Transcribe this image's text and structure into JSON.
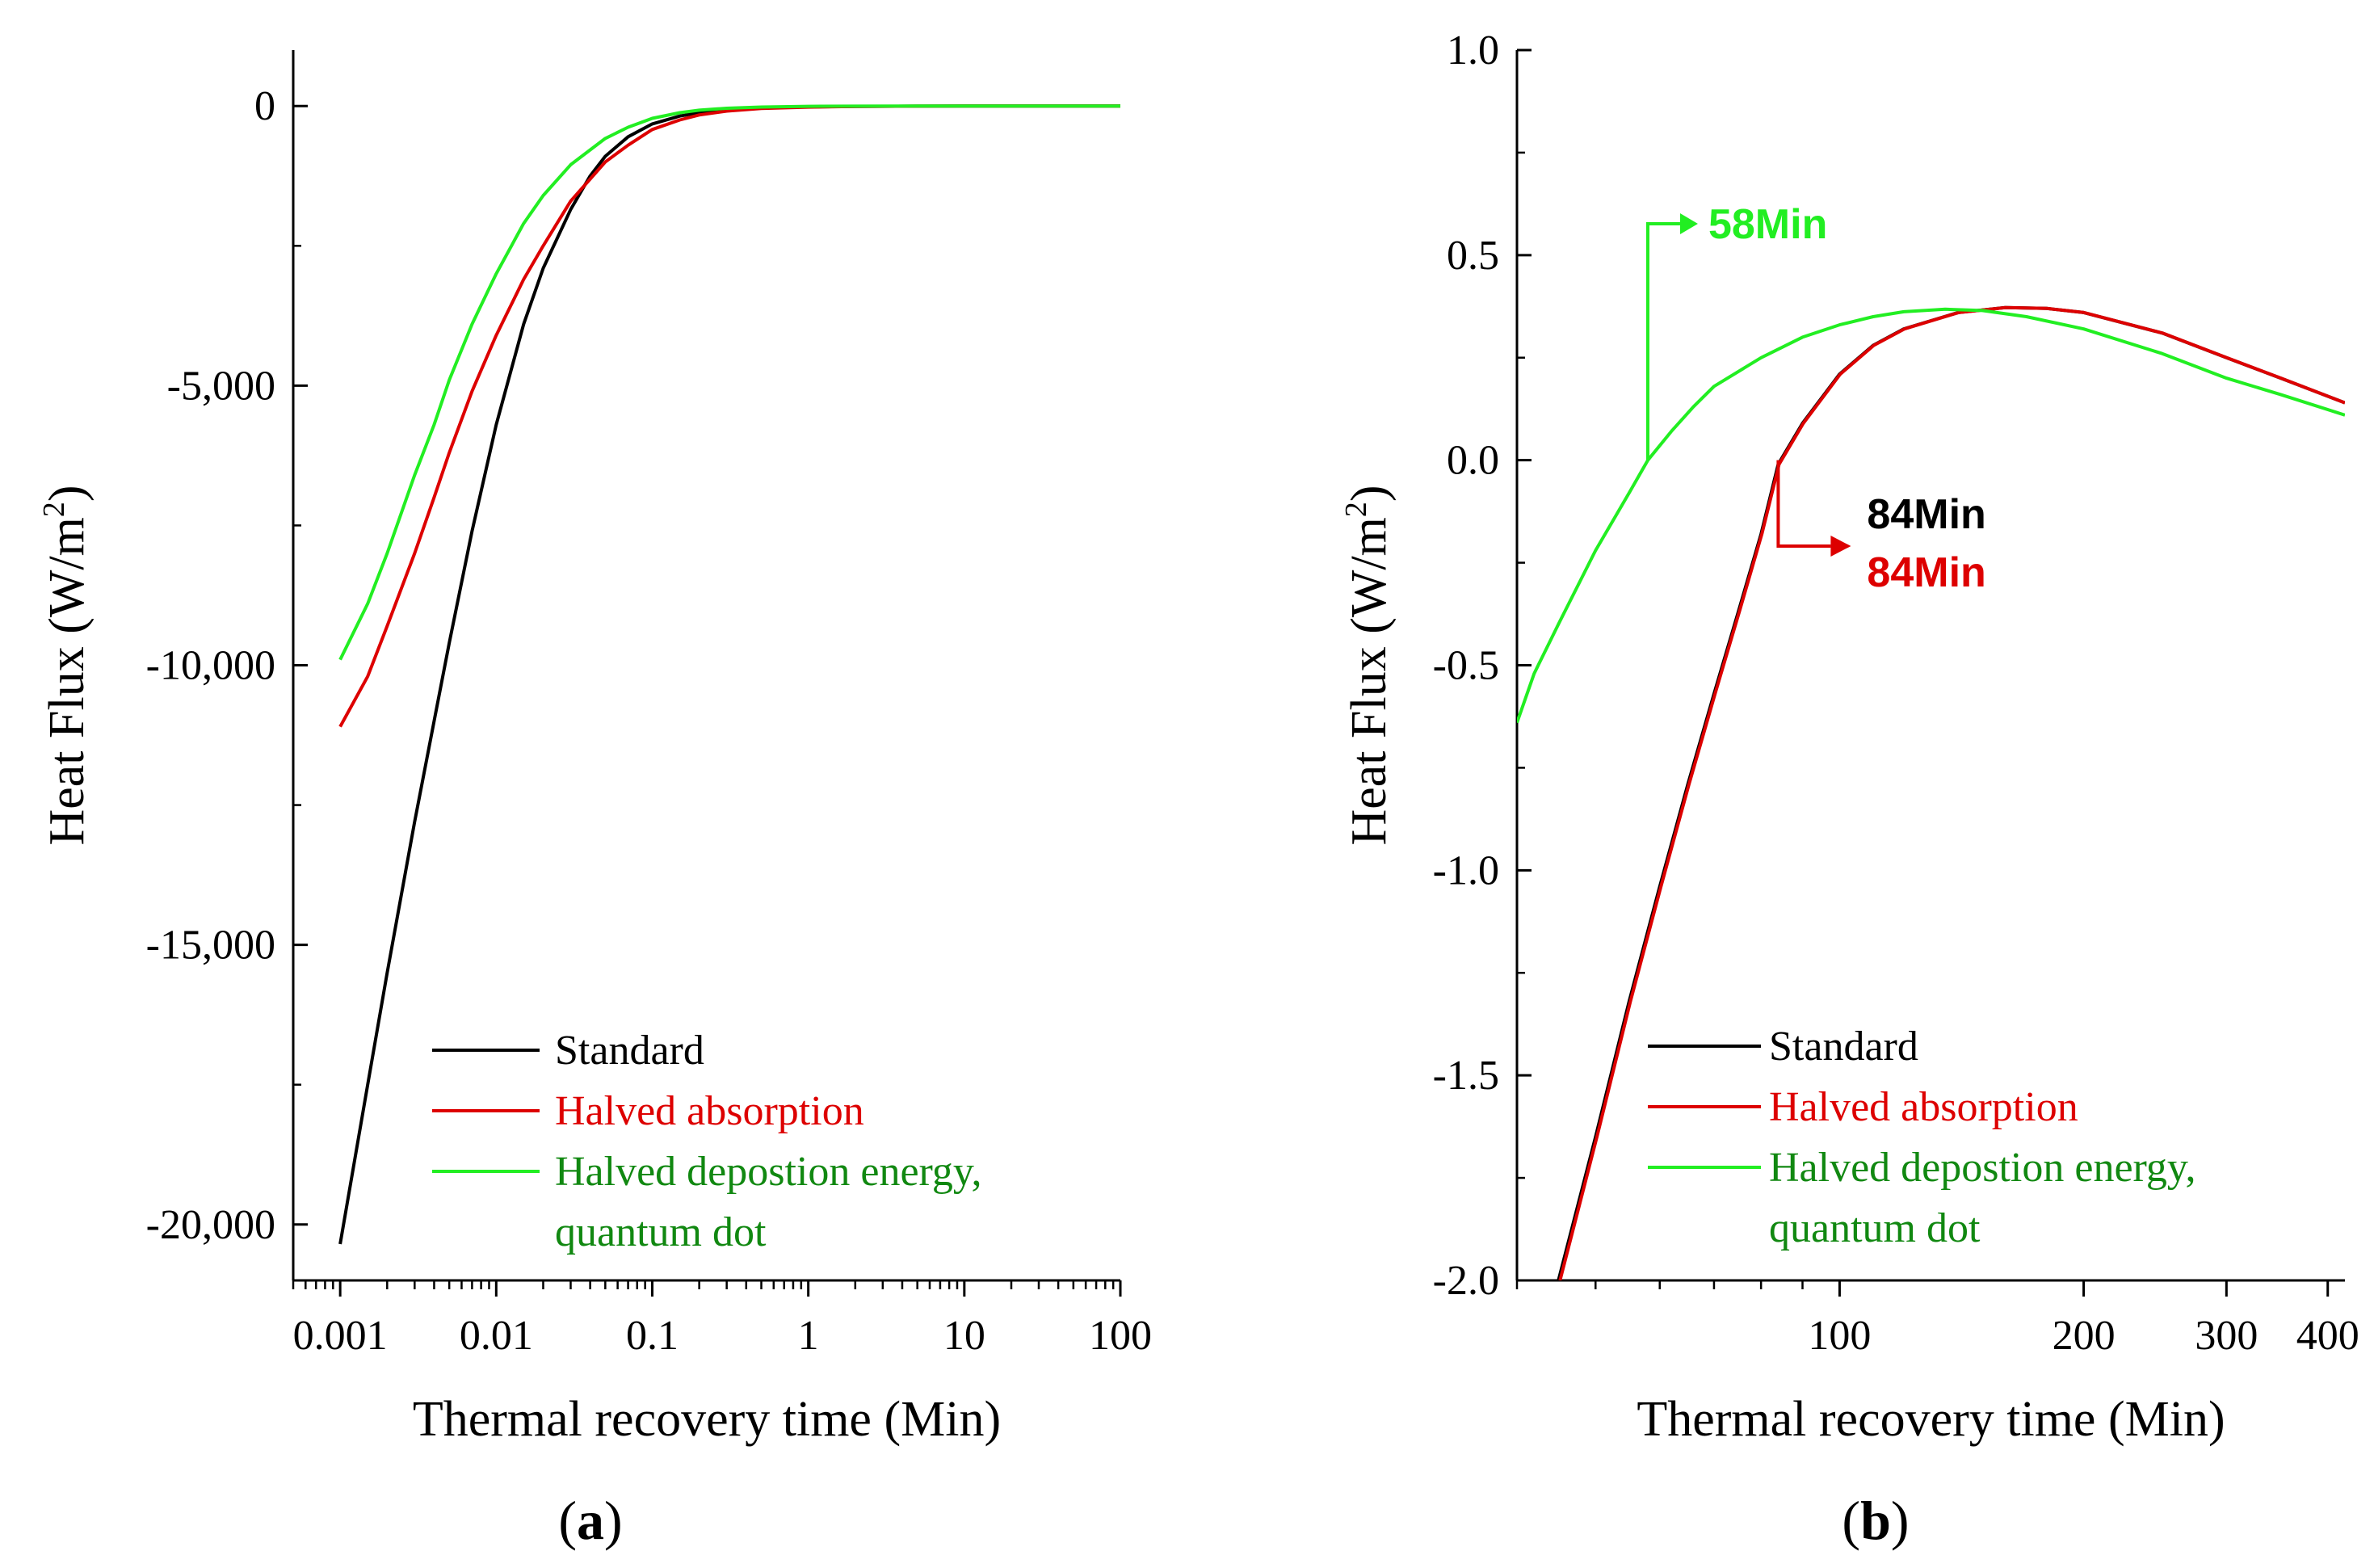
{
  "colors": {
    "standard": "#000000",
    "halved_absorption": "#dd0000",
    "halved_deposition": "#22ee22",
    "legend_text_green": "#118811",
    "annot_green": "#22ee22",
    "annot_black": "#000000",
    "annot_red": "#dd0000"
  },
  "chart_data": [
    {
      "panel": "a",
      "panel_label_open": "(",
      "panel_label_letter": "a",
      "panel_label_close": ")",
      "type": "line",
      "xscale": "log",
      "xlabel": "Thermal recovery time (Min)",
      "ylabel_main": "Heat Flux (W/m",
      "ylabel_sup": "2",
      "ylabel_close": ")",
      "xlim": [
        0.0005,
        100
      ],
      "ylim": [
        -21000,
        1000
      ],
      "xticks": [
        {
          "value": 0.001,
          "label": "0.001"
        },
        {
          "value": 0.01,
          "label": "0.01"
        },
        {
          "value": 0.1,
          "label": "0.1"
        },
        {
          "value": 1,
          "label": "1"
        },
        {
          "value": 10,
          "label": "10"
        },
        {
          "value": 100,
          "label": "100"
        }
      ],
      "yticks": [
        {
          "value": 0,
          "label": "0"
        },
        {
          "value": -5000,
          "label": "-5,000"
        },
        {
          "value": -10000,
          "label": "-10,000"
        },
        {
          "value": -15000,
          "label": "-15,000"
        },
        {
          "value": -20000,
          "label": "-20,000"
        }
      ],
      "legend_position": "bottom-right",
      "series": [
        {
          "name": "Standard",
          "key": "standard",
          "x": [
            0.001,
            0.0015,
            0.002,
            0.003,
            0.004,
            0.005,
            0.007,
            0.01,
            0.015,
            0.02,
            0.03,
            0.04,
            0.05,
            0.07,
            0.1,
            0.15,
            0.2,
            0.3,
            0.5,
            0.7,
            1,
            2,
            5,
            10,
            100
          ],
          "y": [
            -20350,
            -17500,
            -15500,
            -12800,
            -11000,
            -9600,
            -7600,
            -5700,
            -3900,
            -2900,
            -1850,
            -1250,
            -900,
            -550,
            -320,
            -180,
            -120,
            -70,
            -35,
            -22,
            -15,
            -8,
            -3,
            -1,
            0
          ]
        },
        {
          "name": "Halved absorption",
          "key": "halved_absorption",
          "x": [
            0.001,
            0.0015,
            0.002,
            0.003,
            0.004,
            0.005,
            0.007,
            0.01,
            0.015,
            0.02,
            0.03,
            0.05,
            0.07,
            0.1,
            0.15,
            0.2,
            0.3,
            0.5,
            1,
            2,
            5,
            10,
            100
          ],
          "y": [
            -11100,
            -10200,
            -9300,
            -8000,
            -7000,
            -6200,
            -5100,
            -4100,
            -3100,
            -2500,
            -1700,
            -1000,
            -700,
            -420,
            -250,
            -160,
            -90,
            -45,
            -20,
            -8,
            -3,
            -1,
            0
          ]
        },
        {
          "name": "Halved depostion energy,",
          "name_line2": "quantum dot",
          "key": "halved_deposition",
          "x": [
            0.001,
            0.0015,
            0.002,
            0.003,
            0.004,
            0.005,
            0.007,
            0.01,
            0.015,
            0.02,
            0.03,
            0.05,
            0.07,
            0.1,
            0.15,
            0.2,
            0.3,
            0.5,
            1,
            2,
            5,
            10,
            100
          ],
          "y": [
            -9900,
            -8900,
            -8000,
            -6600,
            -5700,
            -4900,
            -3900,
            -3000,
            -2100,
            -1600,
            -1050,
            -580,
            -380,
            -220,
            -120,
            -75,
            -40,
            -18,
            -6,
            -2,
            -1,
            0,
            0
          ]
        }
      ]
    },
    {
      "panel": "b",
      "panel_label_open": "(",
      "panel_label_letter": "b",
      "panel_label_close": ")",
      "type": "line",
      "xscale": "log",
      "xlabel": "Thermal recovery time (Min)",
      "ylabel_main": "Heat Flux (W/m",
      "ylabel_sup": "2",
      "ylabel_close": ")",
      "xlim": [
        40,
        420
      ],
      "ylim": [
        -2.0,
        1.0
      ],
      "xticks": [
        {
          "value": 100,
          "label": "100"
        },
        {
          "value": 200,
          "label": "200"
        },
        {
          "value": 300,
          "label": "300"
        },
        {
          "value": 400,
          "label": "400"
        }
      ],
      "yticks": [
        {
          "value": 1.0,
          "label": "1.0"
        },
        {
          "value": 0.5,
          "label": "0.5"
        },
        {
          "value": 0.0,
          "label": "0.0"
        },
        {
          "value": -0.5,
          "label": "-0.5"
        },
        {
          "value": -1.0,
          "label": "-1.0"
        },
        {
          "value": -1.5,
          "label": "-1.5"
        },
        {
          "value": -2.0,
          "label": "-2.0"
        }
      ],
      "legend_position": "bottom-right",
      "annotations": [
        {
          "text": "58Min",
          "key": "annot_green",
          "x_value": 58,
          "y_value": 0.0
        },
        {
          "text": "84Min",
          "key": "annot_black",
          "x_value": 84,
          "y_value": 0.0
        },
        {
          "text": "84Min",
          "key": "annot_red",
          "x_value": 84,
          "y_value": 0.0
        }
      ],
      "series": [
        {
          "name": "Standard",
          "key": "standard",
          "x": [
            45,
            50,
            55,
            60,
            65,
            70,
            75,
            80,
            84,
            90,
            100,
            110,
            120,
            140,
            160,
            180,
            200,
            250,
            300,
            350,
            420
          ],
          "y": [
            -2.0,
            -1.65,
            -1.32,
            -1.04,
            -0.79,
            -0.57,
            -0.37,
            -0.18,
            -0.01,
            0.09,
            0.21,
            0.28,
            0.32,
            0.36,
            0.372,
            0.37,
            0.36,
            0.31,
            0.25,
            0.2,
            0.14
          ]
        },
        {
          "name": "Halved absorption",
          "key": "halved_absorption",
          "x": [
            45.2,
            50.2,
            55.2,
            60.2,
            65.2,
            70.2,
            75.2,
            80.2,
            84.2,
            90.2,
            100.2,
            110.2,
            120.2,
            140.2,
            160.2,
            180.2,
            200.2,
            250.2,
            300.2,
            350.2,
            420
          ],
          "y": [
            -2.0,
            -1.65,
            -1.32,
            -1.04,
            -0.79,
            -0.57,
            -0.37,
            -0.18,
            -0.01,
            0.09,
            0.21,
            0.28,
            0.32,
            0.36,
            0.372,
            0.37,
            0.36,
            0.31,
            0.25,
            0.2,
            0.14
          ]
        },
        {
          "name": "Halved depostion energy,",
          "name_line2": "quantum dot",
          "key": "halved_deposition",
          "x": [
            40,
            42,
            45,
            50,
            55,
            58,
            62,
            66,
            70,
            80,
            90,
            100,
            110,
            120,
            135,
            150,
            170,
            200,
            250,
            300,
            350,
            420
          ],
          "y": [
            -0.64,
            -0.52,
            -0.4,
            -0.22,
            -0.08,
            0.0,
            0.07,
            0.13,
            0.18,
            0.25,
            0.3,
            0.33,
            0.35,
            0.362,
            0.368,
            0.365,
            0.35,
            0.32,
            0.26,
            0.2,
            0.16,
            0.11
          ]
        }
      ]
    }
  ]
}
